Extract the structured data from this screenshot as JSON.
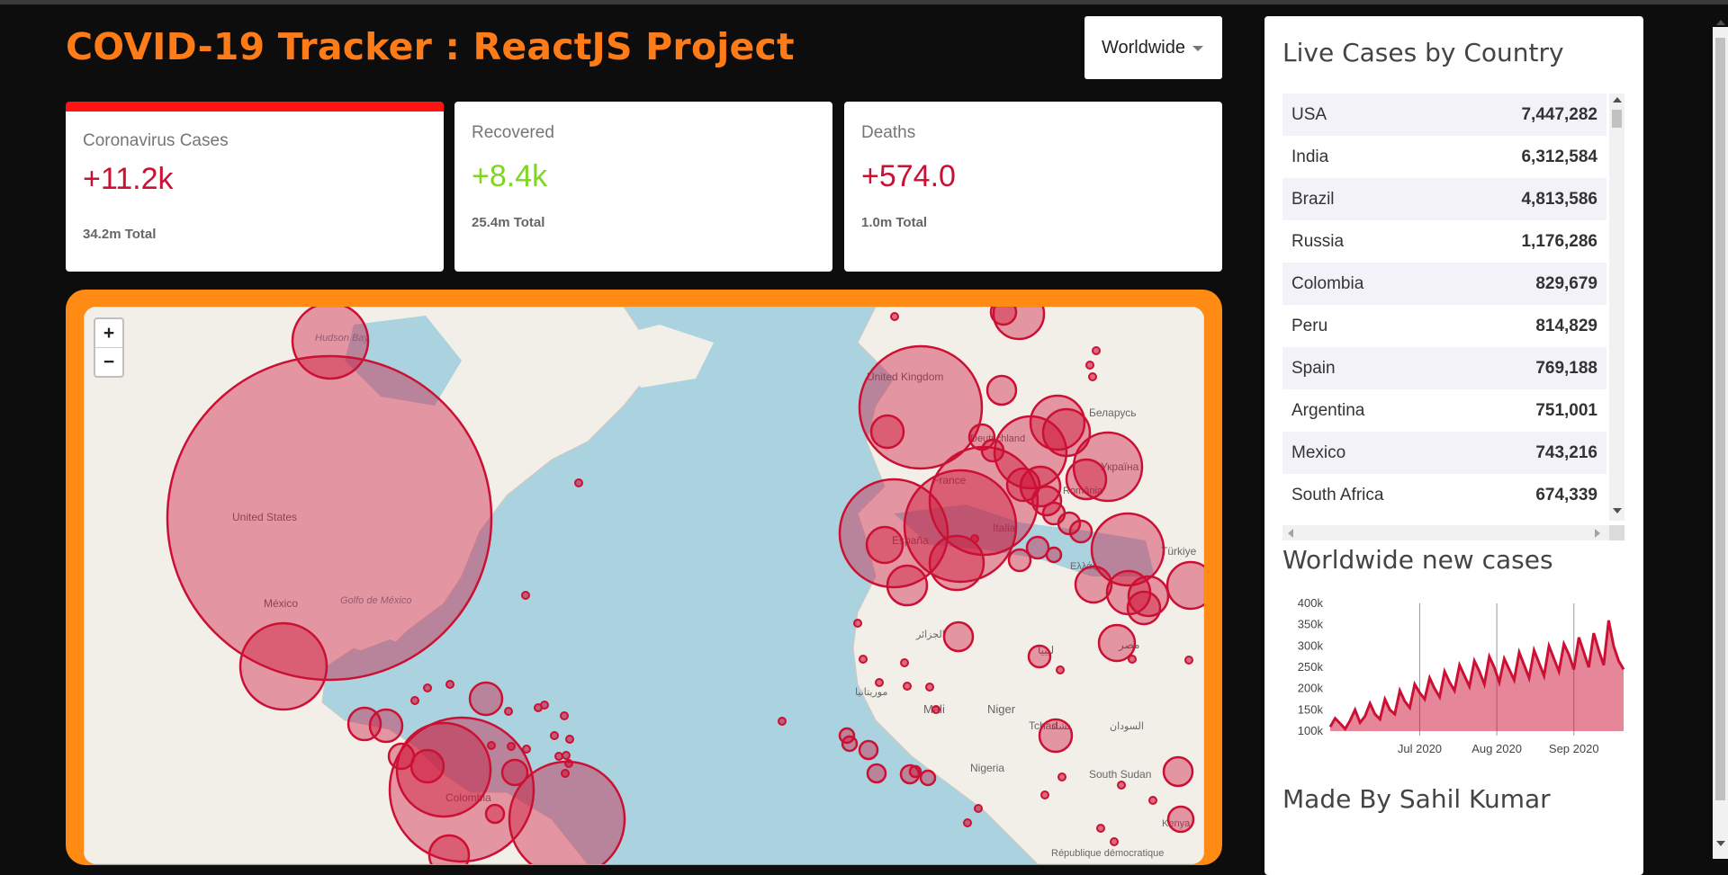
{
  "header": {
    "title": "COVID-19 Tracker : ReactJS Project",
    "country_select": "Worldwide"
  },
  "cards": [
    {
      "label": "Coronavirus Cases",
      "value": "+11.2k",
      "total": "34.2m Total",
      "accent": "#cc1034",
      "selected": true
    },
    {
      "label": "Recovered",
      "value": "+8.4k",
      "total": "25.4m Total",
      "accent": "#7dd71d",
      "selected": false
    },
    {
      "label": "Deaths",
      "value": "+574.0",
      "total": "1.0m Total",
      "accent": "#cc1034",
      "selected": false
    }
  ],
  "map": {
    "zoom_in": "+",
    "zoom_out": "−",
    "labels": [
      "Hudson Bay",
      "United States",
      "México",
      "Golfo de México",
      "Colombia",
      "United Kingdom",
      "France",
      "España",
      "Italia",
      "Deutschland",
      "Беларусь",
      "Україна",
      "România",
      "Türkiye",
      "Ελλάς",
      "Mali",
      "Niger",
      "Tchad",
      "Nigeria",
      "South Sudan",
      "Kenya",
      "مصر",
      "ليبيا",
      "السودان",
      "تشاد",
      "موريتانيا",
      "الجزائر",
      "République démocratique"
    ]
  },
  "sidebar": {
    "table_title": "Live Cases by Country",
    "countries": [
      {
        "country": "USA",
        "cases": "7,447,282"
      },
      {
        "country": "India",
        "cases": "6,312,584"
      },
      {
        "country": "Brazil",
        "cases": "4,813,586"
      },
      {
        "country": "Russia",
        "cases": "1,176,286"
      },
      {
        "country": "Colombia",
        "cases": "829,679"
      },
      {
        "country": "Peru",
        "cases": "814,829"
      },
      {
        "country": "Spain",
        "cases": "769,188"
      },
      {
        "country": "Argentina",
        "cases": "751,001"
      },
      {
        "country": "Mexico",
        "cases": "743,216"
      },
      {
        "country": "South Africa",
        "cases": "674,339"
      }
    ],
    "chart_title": "Worldwide new cases",
    "footer": "Made By Sahil Kumar"
  },
  "chart_data": {
    "type": "area",
    "title": "Worldwide new cases",
    "xlabel": "",
    "ylabel": "",
    "ylim": [
      100000,
      400000
    ],
    "y_ticks": [
      "100k",
      "150k",
      "200k",
      "250k",
      "300k",
      "350k",
      "400k"
    ],
    "x_ticks": [
      "Jul 2020",
      "Aug 2020",
      "Sep 2020"
    ],
    "x_tick_days": [
      36,
      67,
      98
    ],
    "color": "#cc1034",
    "days": [
      0,
      2,
      4,
      6,
      8,
      10,
      12,
      14,
      16,
      18,
      20,
      22,
      24,
      26,
      28,
      30,
      32,
      34,
      36,
      38,
      40,
      42,
      44,
      46,
      48,
      50,
      52,
      54,
      56,
      58,
      60,
      62,
      64,
      66,
      68,
      70,
      72,
      74,
      76,
      78,
      80,
      82,
      84,
      86,
      88,
      90,
      92,
      94,
      96,
      98,
      100,
      102,
      104,
      106,
      108,
      110,
      112,
      114,
      116,
      118
    ],
    "values": [
      110000,
      130000,
      118000,
      105000,
      125000,
      150000,
      120000,
      135000,
      165000,
      140000,
      128000,
      175000,
      150000,
      140000,
      195000,
      170000,
      155000,
      210000,
      190000,
      175000,
      225000,
      200000,
      180000,
      240000,
      215000,
      195000,
      255000,
      230000,
      205000,
      265000,
      240000,
      210000,
      275000,
      250000,
      215000,
      270000,
      245000,
      220000,
      285000,
      255000,
      225000,
      290000,
      260000,
      230000,
      300000,
      270000,
      240000,
      305000,
      280000,
      245000,
      320000,
      285000,
      250000,
      330000,
      290000,
      255000,
      360000,
      300000,
      265000,
      245000
    ]
  },
  "colors": {
    "accent_orange": "#ff7b17",
    "map_circle": "#cc1034",
    "selected_card_border": "#ff1313"
  }
}
